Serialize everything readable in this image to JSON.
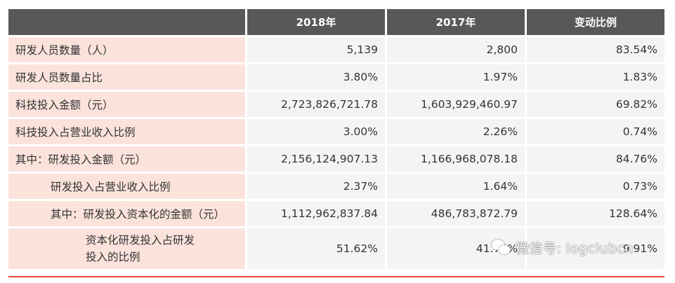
{
  "table": {
    "headers": [
      "",
      "2018年",
      "2017年",
      "变动比例"
    ],
    "rows": [
      {
        "label": "研发人员数量（人）",
        "y2018": "5,139",
        "y2017": "2,800",
        "change": "83.54%"
      },
      {
        "label": "研发人员数量占比",
        "y2018": "3.80%",
        "y2017": "1.97%",
        "change": "1.83%"
      },
      {
        "label": "科技投入金额（元）",
        "y2018": "2,723,826,721.78",
        "y2017": "1,603,929,460.97",
        "change": "69.82%"
      },
      {
        "label": "科技投入占营业收入比例",
        "y2018": "3.00%",
        "y2017": "2.26%",
        "change": "0.74%"
      },
      {
        "label": "其中：研发投入金额（元）",
        "y2018": "2,156,124,907.13",
        "y2017": "1,166,968,078.18",
        "change": "84.76%"
      },
      {
        "label": "研发投入占营业收入比例",
        "y2018": "2.37%",
        "y2017": "1.64%",
        "change": "0.73%"
      },
      {
        "label": "其中：研发投入资本化的金额（元）",
        "y2018": "1,112,962,837.84",
        "y2017": "486,783,872.79",
        "change": "128.64%"
      },
      {
        "label_line1": "资本化研发投入占研发",
        "label_line2": "投入的比例",
        "y2018": "51.62%",
        "y2017": "41.71%",
        "change": "9.91%"
      }
    ]
  },
  "watermark": {
    "text": "微信号: logclubcn",
    "icon": "wechat-icon"
  },
  "colors": {
    "header_bg": "#595757",
    "label_bg": "#fbe3dc",
    "value_bg": "#f4f4f4",
    "accent_line": "#e8453c"
  }
}
